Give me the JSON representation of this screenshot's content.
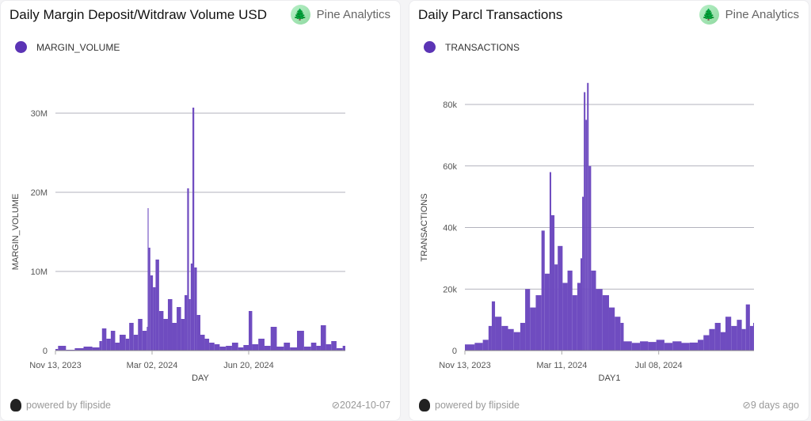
{
  "cards": [
    {
      "title": "Daily Margin Deposit/Witdraw Volume USD",
      "brand": "Pine Analytics",
      "powered": "powered by flipside",
      "updated": "2024-10-07"
    },
    {
      "title": "Daily Parcl Transactions",
      "brand": "Pine Analytics",
      "powered": "powered by flipside",
      "updated": "9 days ago"
    }
  ],
  "colors": {
    "bar": "#6f4cc0",
    "legend_dot": "#5b34b5",
    "grid": "#9a9aa6"
  },
  "chart_data": [
    {
      "type": "bar",
      "legend": "MARGIN_VOLUME",
      "xlabel": "DAY",
      "ylabel": "MARGIN_VOLUME",
      "ylim": [
        0,
        30000000
      ],
      "yticks": [
        {
          "v": 0,
          "label": "0"
        },
        {
          "v": 10000000,
          "label": "10M"
        },
        {
          "v": 20000000,
          "label": "20M"
        },
        {
          "v": 30000000,
          "label": "30M"
        }
      ],
      "xticks": [
        {
          "d": "2023-11-13",
          "label": "Nov 13, 2023"
        },
        {
          "d": "2024-03-02",
          "label": "Mar 02, 2024"
        },
        {
          "d": "2024-06-20",
          "label": "Jun 20, 2024"
        }
      ],
      "xlim": [
        "2023-11-13",
        "2024-10-08"
      ],
      "grid": true,
      "points": [
        [
          "2023-11-13",
          200000
        ],
        [
          "2023-11-16",
          600000
        ],
        [
          "2023-11-25",
          100000
        ],
        [
          "2023-12-05",
          300000
        ],
        [
          "2023-12-15",
          500000
        ],
        [
          "2023-12-25",
          400000
        ],
        [
          "2024-01-02",
          1200000
        ],
        [
          "2024-01-05",
          2800000
        ],
        [
          "2024-01-10",
          1500000
        ],
        [
          "2024-01-15",
          2500000
        ],
        [
          "2024-01-20",
          1000000
        ],
        [
          "2024-01-25",
          2000000
        ],
        [
          "2024-02-01",
          1500000
        ],
        [
          "2024-02-05",
          3500000
        ],
        [
          "2024-02-10",
          2000000
        ],
        [
          "2024-02-15",
          4000000
        ],
        [
          "2024-02-20",
          2500000
        ],
        [
          "2024-02-25",
          3000000
        ],
        [
          "2024-02-26",
          18000000
        ],
        [
          "2024-02-27",
          13000000
        ],
        [
          "2024-02-29",
          9500000
        ],
        [
          "2024-03-03",
          8000000
        ],
        [
          "2024-03-06",
          11500000
        ],
        [
          "2024-03-10",
          5000000
        ],
        [
          "2024-03-15",
          4000000
        ],
        [
          "2024-03-20",
          6500000
        ],
        [
          "2024-03-25",
          3500000
        ],
        [
          "2024-03-30",
          5500000
        ],
        [
          "2024-04-04",
          4000000
        ],
        [
          "2024-04-08",
          7000000
        ],
        [
          "2024-04-11",
          20500000
        ],
        [
          "2024-04-13",
          6500000
        ],
        [
          "2024-04-15",
          11000000
        ],
        [
          "2024-04-17",
          30700000
        ],
        [
          "2024-04-19",
          10500000
        ],
        [
          "2024-04-22",
          4500000
        ],
        [
          "2024-04-26",
          2000000
        ],
        [
          "2024-05-01",
          1500000
        ],
        [
          "2024-05-06",
          1000000
        ],
        [
          "2024-05-12",
          800000
        ],
        [
          "2024-05-18",
          500000
        ],
        [
          "2024-05-25",
          600000
        ],
        [
          "2024-06-01",
          1000000
        ],
        [
          "2024-06-08",
          400000
        ],
        [
          "2024-06-14",
          700000
        ],
        [
          "2024-06-20",
          5000000
        ],
        [
          "2024-06-24",
          800000
        ],
        [
          "2024-07-01",
          1500000
        ],
        [
          "2024-07-08",
          600000
        ],
        [
          "2024-07-15",
          3000000
        ],
        [
          "2024-07-22",
          500000
        ],
        [
          "2024-07-30",
          1000000
        ],
        [
          "2024-08-06",
          400000
        ],
        [
          "2024-08-14",
          2500000
        ],
        [
          "2024-08-22",
          500000
        ],
        [
          "2024-08-30",
          1000000
        ],
        [
          "2024-09-05",
          600000
        ],
        [
          "2024-09-10",
          3200000
        ],
        [
          "2024-09-16",
          800000
        ],
        [
          "2024-09-22",
          1200000
        ],
        [
          "2024-09-28",
          300000
        ],
        [
          "2024-10-05",
          600000
        ]
      ]
    },
    {
      "type": "bar",
      "legend": "TRANSACTIONS",
      "xlabel": "DAY1",
      "ylabel": "TRANSACTIONS",
      "ylim": [
        0,
        80000
      ],
      "yticks": [
        {
          "v": 0,
          "label": "0"
        },
        {
          "v": 20000,
          "label": "20k"
        },
        {
          "v": 40000,
          "label": "40k"
        },
        {
          "v": 60000,
          "label": "60k"
        },
        {
          "v": 80000,
          "label": "80k"
        }
      ],
      "xticks": [
        {
          "d": "2023-11-13",
          "label": "Nov 13, 2023"
        },
        {
          "d": "2024-03-11",
          "label": "Mar 11, 2024"
        },
        {
          "d": "2024-07-08",
          "label": "Jul 08, 2024"
        }
      ],
      "xlim": [
        "2023-11-13",
        "2024-11-02"
      ],
      "grid": true,
      "points": [
        [
          "2023-11-13",
          2000
        ],
        [
          "2023-11-25",
          2500
        ],
        [
          "2023-12-05",
          3500
        ],
        [
          "2023-12-12",
          8000
        ],
        [
          "2023-12-16",
          16000
        ],
        [
          "2023-12-20",
          11000
        ],
        [
          "2023-12-28",
          8000
        ],
        [
          "2024-01-05",
          7000
        ],
        [
          "2024-01-12",
          6000
        ],
        [
          "2024-01-20",
          9000
        ],
        [
          "2024-01-26",
          20000
        ],
        [
          "2024-02-01",
          14000
        ],
        [
          "2024-02-08",
          18000
        ],
        [
          "2024-02-15",
          39000
        ],
        [
          "2024-02-19",
          25000
        ],
        [
          "2024-02-25",
          58000
        ],
        [
          "2024-02-27",
          44000
        ],
        [
          "2024-03-02",
          28000
        ],
        [
          "2024-03-06",
          34000
        ],
        [
          "2024-03-12",
          22000
        ],
        [
          "2024-03-18",
          26000
        ],
        [
          "2024-03-24",
          18000
        ],
        [
          "2024-03-30",
          22000
        ],
        [
          "2024-04-03",
          30000
        ],
        [
          "2024-04-05",
          50000
        ],
        [
          "2024-04-07",
          84000
        ],
        [
          "2024-04-09",
          75000
        ],
        [
          "2024-04-11",
          87000
        ],
        [
          "2024-04-13",
          60000
        ],
        [
          "2024-04-16",
          26000
        ],
        [
          "2024-04-22",
          20000
        ],
        [
          "2024-04-30",
          18000
        ],
        [
          "2024-05-08",
          14000
        ],
        [
          "2024-05-15",
          11000
        ],
        [
          "2024-05-22",
          9000
        ],
        [
          "2024-05-26",
          3000
        ],
        [
          "2024-06-05",
          2500
        ],
        [
          "2024-06-15",
          3000
        ],
        [
          "2024-06-25",
          2800
        ],
        [
          "2024-07-05",
          3500
        ],
        [
          "2024-07-15",
          2500
        ],
        [
          "2024-07-25",
          3000
        ],
        [
          "2024-08-05",
          2500
        ],
        [
          "2024-08-15",
          2600
        ],
        [
          "2024-08-25",
          3500
        ],
        [
          "2024-09-01",
          5000
        ],
        [
          "2024-09-08",
          7000
        ],
        [
          "2024-09-15",
          9000
        ],
        [
          "2024-09-22",
          6000
        ],
        [
          "2024-09-28",
          11000
        ],
        [
          "2024-10-05",
          8000
        ],
        [
          "2024-10-12",
          10000
        ],
        [
          "2024-10-18",
          7000
        ],
        [
          "2024-10-23",
          15000
        ],
        [
          "2024-10-28",
          8000
        ],
        [
          "2024-11-01",
          9000
        ]
      ]
    }
  ]
}
